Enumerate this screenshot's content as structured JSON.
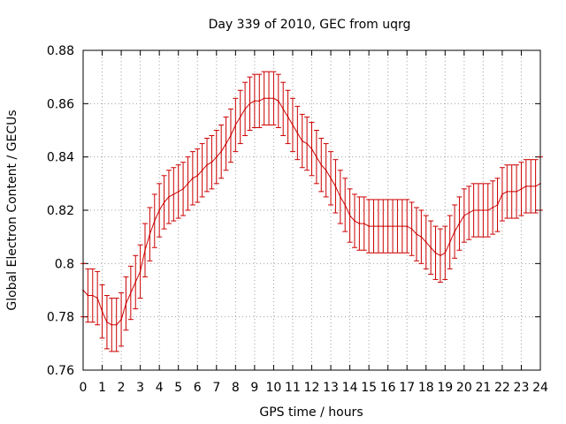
{
  "chart_data": {
    "type": "line",
    "title": "Day 339 of 2010, GEC from uqrg",
    "xlabel": "GPS time / hours",
    "ylabel": "Global Electron Content / GECUs",
    "xlim": [
      0,
      24
    ],
    "ylim": [
      0.76,
      0.88
    ],
    "grid": true,
    "x_ticks": [
      "0",
      "1",
      "2",
      "3",
      "4",
      "5",
      "6",
      "7",
      "8",
      "9",
      "10",
      "11",
      "12",
      "13",
      "14",
      "15",
      "16",
      "17",
      "18",
      "19",
      "20",
      "21",
      "22",
      "23",
      "24"
    ],
    "y_ticks": [
      "0.76",
      "0.78",
      "0.8",
      "0.82",
      "0.84",
      "0.86",
      "0.88"
    ],
    "series_color": "#cc0000",
    "series": [
      {
        "x": [
          0,
          0.25,
          0.5,
          0.75,
          1,
          1.25,
          1.5,
          1.75,
          2,
          2.25,
          2.5,
          2.75,
          3,
          3.25,
          3.5,
          3.75,
          4,
          4.25,
          4.5,
          4.75,
          5,
          5.25,
          5.5,
          5.75,
          6,
          6.25,
          6.5,
          6.75,
          7,
          7.25,
          7.5,
          7.75,
          8,
          8.25,
          8.5,
          8.75,
          9,
          9.25,
          9.5,
          9.75,
          10,
          10.25,
          10.5,
          10.75,
          11,
          11.25,
          11.5,
          11.75,
          12,
          12.25,
          12.5,
          12.75,
          13,
          13.25,
          13.5,
          13.75,
          14,
          14.25,
          14.5,
          14.75,
          15,
          15.25,
          15.5,
          15.75,
          16,
          16.25,
          16.5,
          16.75,
          17,
          17.25,
          17.5,
          17.75,
          18,
          18.25,
          18.5,
          18.75,
          19,
          19.25,
          19.5,
          19.75,
          20,
          20.25,
          20.5,
          20.75,
          21,
          21.25,
          21.5,
          21.75,
          22,
          22.25,
          22.5,
          22.75,
          23,
          23.25,
          23.5,
          23.75,
          24
        ],
        "values": [
          0.79,
          0.788,
          0.788,
          0.787,
          0.782,
          0.778,
          0.777,
          0.777,
          0.779,
          0.785,
          0.789,
          0.793,
          0.797,
          0.805,
          0.811,
          0.816,
          0.82,
          0.823,
          0.825,
          0.826,
          0.827,
          0.828,
          0.83,
          0.832,
          0.833,
          0.835,
          0.837,
          0.838,
          0.84,
          0.842,
          0.845,
          0.848,
          0.852,
          0.855,
          0.858,
          0.86,
          0.861,
          0.861,
          0.862,
          0.862,
          0.862,
          0.861,
          0.858,
          0.855,
          0.852,
          0.849,
          0.846,
          0.845,
          0.843,
          0.84,
          0.837,
          0.835,
          0.832,
          0.829,
          0.825,
          0.822,
          0.818,
          0.816,
          0.815,
          0.815,
          0.814,
          0.814,
          0.814,
          0.814,
          0.814,
          0.814,
          0.814,
          0.814,
          0.814,
          0.813,
          0.811,
          0.81,
          0.808,
          0.806,
          0.804,
          0.803,
          0.804,
          0.808,
          0.812,
          0.815,
          0.818,
          0.819,
          0.82,
          0.82,
          0.82,
          0.82,
          0.821,
          0.822,
          0.826,
          0.827,
          0.827,
          0.827,
          0.828,
          0.829,
          0.829,
          0.829,
          0.83
        ],
        "error": 0.01
      }
    ]
  }
}
